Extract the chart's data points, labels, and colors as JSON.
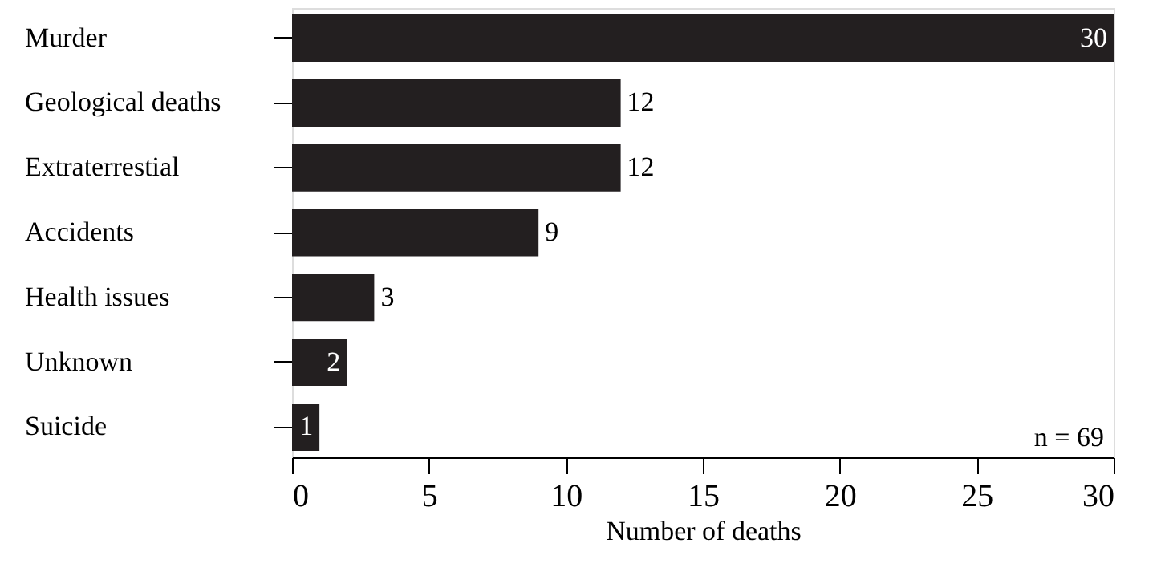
{
  "chart_data": {
    "type": "bar",
    "orientation": "horizontal",
    "xlabel": "Number of deaths",
    "categories": [
      "Murder",
      "Geological deaths",
      "Extraterrestial",
      "Accidents",
      "Health issues",
      "Unknown",
      "Suicide"
    ],
    "values": [
      30,
      12,
      12,
      9,
      3,
      2,
      1
    ],
    "color": "#231f20",
    "xlim": [
      0,
      30
    ],
    "xticks": [
      0,
      5,
      10,
      15,
      20,
      25,
      30
    ],
    "grid": false,
    "data_labels": true,
    "annotations": [
      "n = 69"
    ]
  }
}
